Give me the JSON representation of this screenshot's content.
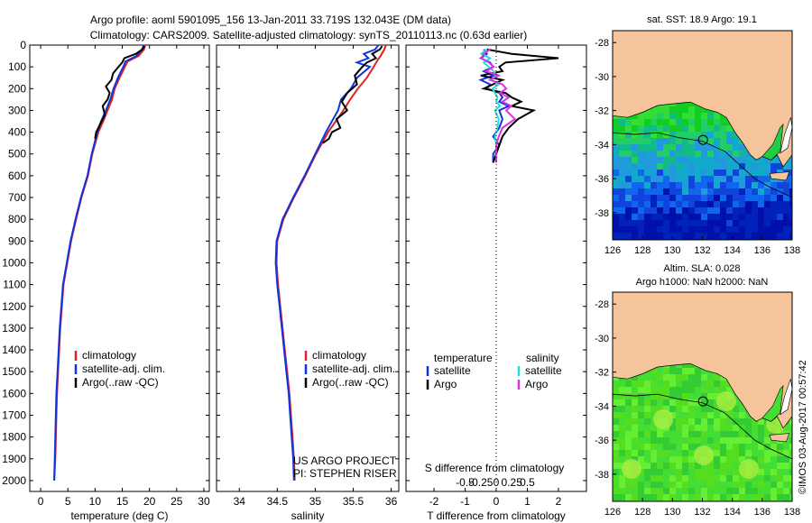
{
  "header": {
    "line1": "Argo profile: aoml 5901095_156 13-Jan-2011 33.719S 132.043E (DM data)",
    "line2": "Climatology: CARS2009. Satellite-adjusted climatology: synTS_20110113.nc (0.63d earlier)"
  },
  "colors": {
    "climatology": "#dd2222",
    "satellite": "#1133dd",
    "argo": "#000000",
    "sal_satellite": "#22dddd",
    "sal_argo": "#dd33dd",
    "land": "#f5c49b"
  },
  "chart_data": [
    {
      "type": "line",
      "panel": "temperature",
      "xlabel": "temperature (deg C)",
      "xlim": [
        -2,
        31
      ],
      "xticks": [
        0,
        5,
        10,
        15,
        20,
        25,
        30
      ],
      "ylim": [
        2050,
        0
      ],
      "yticks": [
        0,
        100,
        200,
        300,
        400,
        500,
        600,
        700,
        800,
        900,
        1000,
        1100,
        1200,
        1300,
        1400,
        1500,
        1600,
        1700,
        1800,
        1900,
        2000
      ],
      "legend": [
        "climatology",
        "satellite-adj. clim.",
        "Argo(..raw -QC)"
      ],
      "series": [
        {
          "name": "climatology",
          "depth": [
            0,
            20,
            50,
            75,
            100,
            150,
            200,
            250,
            300,
            350,
            400,
            500,
            600,
            700,
            800,
            900,
            1000,
            1100,
            1200,
            1300,
            1400,
            1500,
            1600,
            1700,
            1800,
            1900,
            2000
          ],
          "values": [
            19.2,
            19.0,
            18.0,
            16.0,
            15.5,
            14.5,
            13.6,
            13.1,
            12.3,
            11.5,
            10.6,
            9.5,
            8.7,
            7.5,
            6.5,
            5.6,
            4.9,
            4.2,
            3.9,
            3.6,
            3.4,
            3.2,
            3.0,
            2.9,
            2.8,
            2.7,
            2.5
          ]
        },
        {
          "name": "satellite-adj. clim.",
          "depth": [
            0,
            20,
            50,
            75,
            100,
            150,
            200,
            250,
            300,
            350,
            400,
            500,
            600,
            700,
            800,
            900,
            1000,
            1100,
            1200,
            1300,
            1400,
            1500,
            1600,
            1700,
            1800,
            1900,
            2000
          ],
          "values": [
            19.0,
            18.6,
            17.6,
            15.6,
            15.2,
            14.2,
            13.4,
            12.8,
            12.0,
            11.1,
            10.4,
            9.4,
            8.6,
            7.4,
            6.4,
            5.5,
            4.8,
            4.1,
            3.8,
            3.5,
            3.3,
            3.1,
            2.9,
            2.8,
            2.7,
            2.6,
            2.5
          ]
        },
        {
          "name": "Argo(..raw -QC)",
          "depth": [
            5,
            20,
            40,
            60,
            80,
            100,
            130,
            160,
            190,
            220,
            250,
            280,
            320,
            360,
            400,
            430
          ],
          "values": [
            19.1,
            18.7,
            17.5,
            15.4,
            15.0,
            14.3,
            13.3,
            13.0,
            12.0,
            12.7,
            12.3,
            11.4,
            11.8,
            11.0,
            10.2,
            10.0
          ]
        }
      ]
    },
    {
      "type": "line",
      "panel": "salinity",
      "xlabel": "salinity",
      "xlim": [
        33.7,
        36.1
      ],
      "xticks": [
        34,
        34.5,
        35,
        35.5,
        36
      ],
      "xticklabels": [
        "34",
        "34.5",
        "35",
        "35.5",
        "36"
      ],
      "ylim": [
        2050,
        0
      ],
      "legend": [
        "climatology",
        "satellite-adj. clim.",
        "Argo(..raw -QC)"
      ],
      "annotation": [
        "US ARGO PROJECT",
        "PI: STEPHEN RISER"
      ],
      "series": [
        {
          "name": "climatology",
          "depth": [
            0,
            20,
            50,
            75,
            100,
            150,
            200,
            250,
            300,
            350,
            400,
            450,
            500,
            550,
            600,
            700,
            800,
            900,
            1000,
            1100,
            1200,
            1300,
            1400,
            1500,
            1600,
            1700,
            1800,
            1900,
            2000
          ],
          "values": [
            35.93,
            35.91,
            35.86,
            35.81,
            35.77,
            35.68,
            35.56,
            35.46,
            35.37,
            35.27,
            35.17,
            35.09,
            35.01,
            34.94,
            34.87,
            34.72,
            34.58,
            34.5,
            34.49,
            34.51,
            34.54,
            34.57,
            34.6,
            34.63,
            34.66,
            34.68,
            34.7,
            34.72,
            34.73
          ]
        },
        {
          "name": "satellite-adj. clim.",
          "depth": [
            0,
            20,
            40,
            60,
            80,
            100,
            150,
            200,
            250,
            300,
            350,
            400,
            450,
            500,
            550,
            600,
            700,
            800,
            900,
            1000,
            1100,
            1200,
            1300,
            1400,
            1500,
            1600,
            1700,
            1800,
            1900,
            2000
          ],
          "values": [
            35.83,
            35.79,
            35.64,
            35.7,
            35.55,
            35.72,
            35.55,
            35.47,
            35.34,
            35.3,
            35.22,
            35.14,
            35.07,
            35.0,
            34.93,
            34.86,
            34.71,
            34.57,
            34.49,
            34.48,
            34.5,
            34.53,
            34.56,
            34.59,
            34.62,
            34.65,
            34.67,
            34.69,
            34.71,
            34.72
          ]
        },
        {
          "name": "Argo(..raw -QC)",
          "depth": [
            5,
            20,
            40,
            60,
            80,
            100,
            140,
            180,
            220,
            260,
            300,
            340,
            380,
            400,
            430,
            450
          ],
          "values": [
            35.88,
            35.85,
            35.75,
            35.8,
            35.68,
            35.62,
            35.52,
            35.55,
            35.42,
            35.35,
            35.42,
            35.28,
            35.33,
            35.22,
            35.18,
            35.1
          ]
        }
      ]
    },
    {
      "type": "line",
      "panel": "difference",
      "xlabel": "T difference from climatology",
      "top_xlabel": "S difference from climatology",
      "xlim": [
        -2.9,
        2.9
      ],
      "xticks": [
        -2,
        -1,
        0,
        1,
        2
      ],
      "top_xticks": [
        "-0.5",
        "-0.25",
        "0",
        "0.25",
        "0.5"
      ],
      "ylim": [
        2050,
        0
      ],
      "legend": {
        "temperature_title": "temperature",
        "salinity_title": "salinity",
        "items": [
          "satellite",
          "Argo",
          "satellite",
          "Argo"
        ]
      },
      "series": [
        {
          "name": "T satellite",
          "depth": [
            20,
            40,
            60,
            80,
            100,
            120,
            140,
            160,
            180,
            200,
            220,
            240,
            260,
            280,
            300,
            340,
            380,
            420,
            460,
            500,
            540
          ],
          "values": [
            -0.4,
            -0.3,
            -0.5,
            -0.2,
            -0.1,
            -0.4,
            -0.1,
            -0.5,
            -0.2,
            -0.3,
            0.1,
            0.2,
            0.1,
            0.4,
            0.1,
            0.2,
            0.1,
            -0.1,
            0.1,
            -0.1,
            -0.1
          ]
        },
        {
          "name": "T Argo",
          "depth": [
            20,
            40,
            60,
            80,
            100,
            120,
            140,
            160,
            180,
            200,
            220,
            240,
            260,
            280,
            300,
            340,
            380,
            420,
            460,
            500,
            540
          ],
          "values": [
            -0.3,
            0.5,
            2.0,
            0.3,
            0.1,
            0.2,
            -0.5,
            0.2,
            -0.1,
            -0.4,
            0.3,
            0.5,
            0.8,
            0.5,
            1.2,
            0.7,
            0.4,
            0.2,
            0.1,
            0.0,
            -0.1
          ]
        },
        {
          "name": "S satellite",
          "depth": [
            20,
            40,
            60,
            80,
            100,
            120,
            140,
            160,
            180,
            200,
            220,
            240,
            260,
            280,
            300,
            340,
            380,
            420,
            460,
            500,
            540
          ],
          "values": [
            -0.08,
            -0.12,
            -0.05,
            -0.1,
            -0.06,
            -0.02,
            0.0,
            -0.04,
            0.02,
            -0.03,
            -0.01,
            0.01,
            0.0,
            0.03,
            -0.01,
            0.02,
            0.01,
            -0.01,
            0.0,
            0.0,
            0.0
          ]
        },
        {
          "name": "S Argo",
          "depth": [
            20,
            40,
            60,
            80,
            100,
            120,
            140,
            160,
            180,
            200,
            220,
            240,
            260,
            280,
            300,
            340,
            380,
            420,
            460,
            500,
            540
          ],
          "values": [
            -0.05,
            -0.1,
            -0.12,
            -0.06,
            -0.02,
            -0.08,
            0.02,
            -0.05,
            0.05,
            0.08,
            0.03,
            0.1,
            0.05,
            0.12,
            0.08,
            0.15,
            0.05,
            0.02,
            0.0,
            0.0,
            0.0
          ]
        }
      ]
    }
  ],
  "maps": [
    {
      "title": "sat. SST: 18.9 Argo: 19.1",
      "xticks": [
        "126",
        "128",
        "130",
        "132",
        "134",
        "136",
        "138"
      ],
      "yticks": [
        "-28",
        "-30",
        "-32",
        "-34",
        "-36",
        "-38"
      ],
      "kind": "sst",
      "marker": {
        "lon": 132.043,
        "lat": -33.719
      }
    },
    {
      "title": "Altim. SLA: 0.028",
      "title2": "Argo h1000: NaN h2000: NaN",
      "xticks": [
        "126",
        "128",
        "130",
        "132",
        "134",
        "136",
        "138"
      ],
      "yticks": [
        "-28",
        "-30",
        "-32",
        "-34",
        "-36",
        "-38"
      ],
      "kind": "sla",
      "marker": {
        "lon": 132.043,
        "lat": -33.719
      }
    }
  ],
  "watermark": "©IMOS 03-Aug-2017 00:57:42"
}
